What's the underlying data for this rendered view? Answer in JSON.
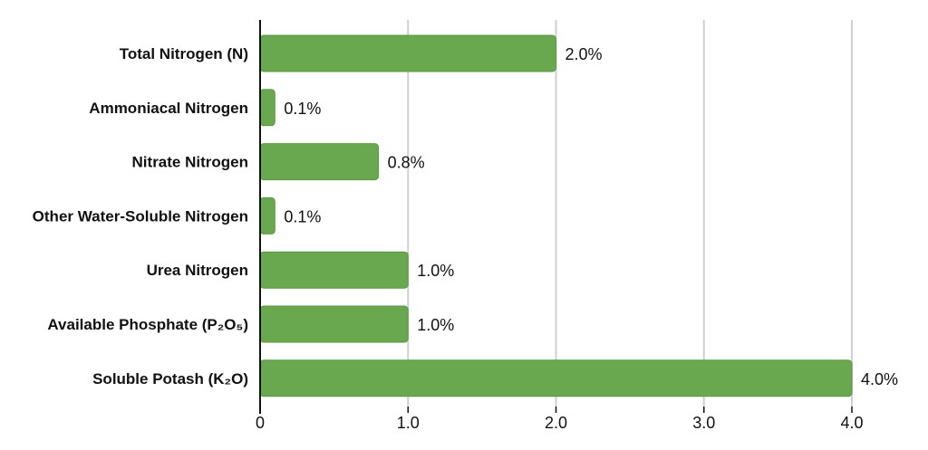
{
  "chart_data": {
    "type": "bar",
    "orientation": "horizontal",
    "title": "",
    "xlabel": "",
    "ylabel": "",
    "categories": [
      "Total Nitrogen (N)",
      "Ammoniacal Nitrogen",
      "Nitrate Nitrogen",
      "Other Water-Soluble Nitrogen",
      "Urea Nitrogen",
      "Available Phosphate (P₂O₅)",
      "Soluble Potash (K₂O)"
    ],
    "values": [
      2.0,
      0.1,
      0.8,
      0.1,
      1.0,
      1.0,
      4.0
    ],
    "value_labels": [
      "2.0%",
      "0.1%",
      "0.8%",
      "0.1%",
      "1.0%",
      "1.0%",
      "4.0%"
    ],
    "xlim": [
      0,
      4.0
    ],
    "xticks": [
      0,
      1.0,
      2.0,
      3.0,
      4.0
    ],
    "xtick_labels": [
      "0",
      "1.0",
      "2.0",
      "3.0",
      "4.0"
    ],
    "grid": "vertical",
    "legend": "none",
    "bar_color": "#6aa84f",
    "bar_border_color": "#5b9940"
  }
}
